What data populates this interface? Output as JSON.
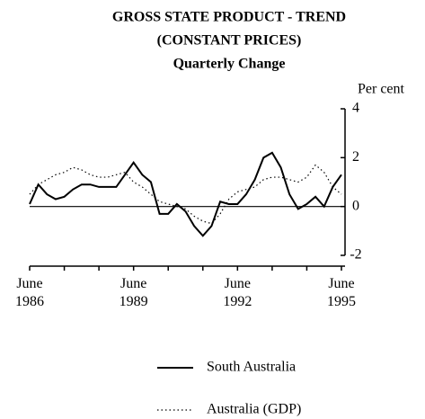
{
  "chart_data": {
    "type": "line",
    "title": "GROSS STATE PRODUCT - TREND",
    "subtitle": "(CONSTANT PRICES)",
    "subtitle2": "Quarterly Change",
    "y_axis_label": "Per cent",
    "categories": [
      "June 1986",
      null,
      null,
      null,
      null,
      null,
      null,
      null,
      null,
      null,
      null,
      null,
      "June 1989",
      null,
      null,
      null,
      null,
      null,
      null,
      null,
      null,
      null,
      null,
      null,
      "June 1992",
      null,
      null,
      null,
      null,
      null,
      null,
      null,
      null,
      null,
      null,
      null,
      "June 1995"
    ],
    "series": [
      {
        "name": "South Australia",
        "color": "#000000",
        "style": "solid",
        "values": [
          0.1,
          0.9,
          0.5,
          0.3,
          0.4,
          0.7,
          0.9,
          0.9,
          0.8,
          0.8,
          0.8,
          1.3,
          1.8,
          1.3,
          1.0,
          -0.3,
          -0.3,
          0.1,
          -0.2,
          -0.8,
          -1.2,
          -0.8,
          0.2,
          0.1,
          0.1,
          0.5,
          1.1,
          2.0,
          2.2,
          1.6,
          0.5,
          -0.1,
          0.1,
          0.4,
          0.0,
          0.8,
          1.3
        ]
      },
      {
        "name": "Australia (GDP)",
        "color": "#000000",
        "style": "dotted",
        "values": [
          0.5,
          0.9,
          1.1,
          1.3,
          1.4,
          1.6,
          1.5,
          1.3,
          1.2,
          1.2,
          1.3,
          1.4,
          1.0,
          0.8,
          0.5,
          0.2,
          0.1,
          0.0,
          -0.1,
          -0.4,
          -0.6,
          -0.7,
          -0.3,
          0.3,
          0.6,
          0.7,
          0.8,
          1.1,
          1.2,
          1.2,
          1.1,
          1.0,
          1.2,
          1.7,
          1.4,
          0.8,
          0.5
        ]
      }
    ],
    "ylim": [
      -2,
      4
    ],
    "yticks": [
      -2,
      0,
      2,
      4
    ],
    "zero_line": true
  }
}
